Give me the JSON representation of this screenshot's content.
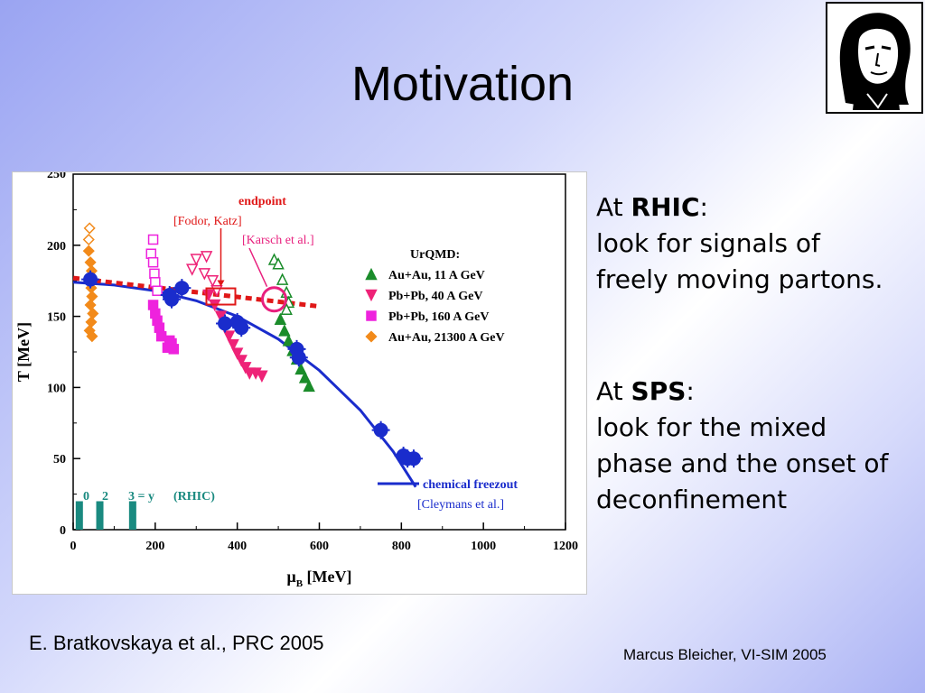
{
  "slide": {
    "title": "Motivation",
    "portrait_icon": "goethe-portrait-logo",
    "reference": "E. Bratkovskaya et al., PRC 2005",
    "footer": "Marcus Bleicher, VI-SIM 2005"
  },
  "side_text": {
    "rhic_prefix": "At ",
    "rhic_bold": "RHIC",
    "rhic_colon": ":",
    "rhic_line1": "look for signals of",
    "rhic_line2": "freely moving partons.",
    "sps_prefix": "At ",
    "sps_bold": "SPS",
    "sps_colon": ":",
    "sps_line1": "look for the mixed",
    "sps_line2": "phase and the onset of",
    "sps_line3": "deconfinement"
  },
  "chart_data": {
    "type": "scatter",
    "xlabel_mu": "μ",
    "xlabel_sub": "B",
    "xlabel_unit": "[MeV]",
    "ylabel": "T [MeV]",
    "xlim": [
      0,
      1200
    ],
    "ylim": [
      0,
      250
    ],
    "x_ticks": [
      0,
      200,
      400,
      600,
      800,
      1000,
      1200
    ],
    "y_ticks": [
      0,
      50,
      100,
      150,
      200
    ],
    "y_tick_partial": "250",
    "legend_title": "UrQMD:",
    "legend_position": "right",
    "annotations": {
      "endpoint": "endpoint",
      "fodor": "[Fodor, Katz]",
      "karsch": "[Karsch et al.]",
      "freezeout": "chemical freezout",
      "cleymans": "[Cleymans et al.]",
      "rapidity": [
        "0",
        "2",
        "3 = y",
        "(RHIC)"
      ]
    },
    "colors": {
      "green": "#1a8c2a",
      "magenta": "#ee2277",
      "pink": "#ee22dd",
      "orange": "#f28a1a",
      "blue": "#1a2ccc",
      "red": "#e01818",
      "teal": "#1a8a80"
    },
    "series": [
      {
        "name": "Au+Au, 11 A GeV",
        "marker": "triangle-up",
        "color": "#1a8c2a",
        "filled": [
          [
            505,
            148
          ],
          [
            515,
            140
          ],
          [
            525,
            133
          ],
          [
            535,
            126
          ],
          [
            545,
            120
          ],
          [
            555,
            113
          ],
          [
            565,
            107
          ],
          [
            575,
            101
          ]
        ],
        "open": [
          [
            490,
            190
          ],
          [
            500,
            187
          ],
          [
            510,
            176
          ],
          [
            520,
            167
          ],
          [
            525,
            160
          ],
          [
            520,
            155
          ]
        ]
      },
      {
        "name": "Pb+Pb, 40 A GeV",
        "marker": "triangle-down",
        "color": "#ee2277",
        "filled": [
          [
            330,
            165
          ],
          [
            345,
            158
          ],
          [
            360,
            150
          ],
          [
            370,
            143
          ],
          [
            380,
            136
          ],
          [
            390,
            130
          ],
          [
            400,
            124
          ],
          [
            410,
            119
          ],
          [
            420,
            114
          ],
          [
            430,
            110
          ],
          [
            445,
            110
          ],
          [
            460,
            108
          ]
        ],
        "open": [
          [
            300,
            190
          ],
          [
            325,
            192
          ],
          [
            290,
            183
          ],
          [
            320,
            180
          ],
          [
            340,
            175
          ],
          [
            350,
            168
          ]
        ]
      },
      {
        "name": "Pb+Pb, 160 A GeV",
        "marker": "square",
        "color": "#ee22dd",
        "filled": [
          [
            195,
            158
          ],
          [
            200,
            152
          ],
          [
            205,
            147
          ],
          [
            210,
            142
          ],
          [
            215,
            136
          ],
          [
            230,
            128
          ],
          [
            235,
            133
          ],
          [
            240,
            131
          ],
          [
            245,
            127
          ]
        ],
        "open": [
          [
            195,
            204
          ],
          [
            190,
            194
          ],
          [
            195,
            188
          ],
          [
            198,
            180
          ],
          [
            200,
            174
          ],
          [
            205,
            168
          ]
        ]
      },
      {
        "name": "Au+Au, 21300 A GeV",
        "marker": "diamond",
        "color": "#f28a1a",
        "filled": [
          [
            38,
            196
          ],
          [
            42,
            188
          ],
          [
            45,
            182
          ],
          [
            40,
            176
          ],
          [
            44,
            170
          ],
          [
            46,
            164
          ],
          [
            42,
            158
          ],
          [
            48,
            152
          ],
          [
            44,
            146
          ],
          [
            40,
            140
          ],
          [
            46,
            136
          ]
        ],
        "open": [
          [
            40,
            212
          ],
          [
            38,
            204
          ]
        ]
      },
      {
        "name": "data",
        "marker": "circle-errorbar",
        "color": "#1a2ccc",
        "points": [
          [
            42,
            176
          ],
          [
            240,
            162
          ],
          [
            265,
            170
          ],
          [
            235,
            165
          ],
          [
            370,
            145
          ],
          [
            400,
            146
          ],
          [
            410,
            142
          ],
          [
            545,
            127
          ],
          [
            550,
            121
          ],
          [
            750,
            70
          ],
          [
            805,
            52
          ],
          [
            815,
            50
          ],
          [
            830,
            50
          ]
        ]
      }
    ],
    "freezeout_curve": [
      [
        0,
        174
      ],
      [
        100,
        172
      ],
      [
        200,
        168
      ],
      [
        300,
        161
      ],
      [
        400,
        150
      ],
      [
        500,
        134
      ],
      [
        600,
        112
      ],
      [
        700,
        84
      ],
      [
        780,
        55
      ],
      [
        835,
        30
      ]
    ],
    "lattice_line": [
      [
        0,
        177
      ],
      [
        600,
        157
      ]
    ],
    "fodor_endpoint": [
      360,
      164
    ],
    "karsch_endpoint": [
      490,
      162
    ],
    "rapidity_bars_x": [
      15,
      65,
      145
    ],
    "rapidity_bar_max": 20
  }
}
